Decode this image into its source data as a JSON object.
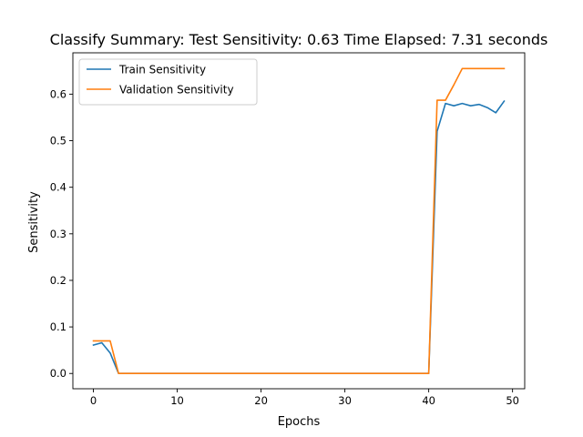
{
  "chart_data": {
    "type": "line",
    "title": "Classify Summary: Test Sensitivity: 0.63 Time Elapsed: 7.31 seconds",
    "xlabel": "Epochs",
    "ylabel": "Sensitivity",
    "xlim": [
      -2.45,
      51.45
    ],
    "ylim": [
      -0.0328,
      0.6888
    ],
    "xticks": [
      0,
      10,
      20,
      30,
      40,
      50
    ],
    "xtick_labels": [
      "0",
      "10",
      "20",
      "30",
      "40",
      "50"
    ],
    "yticks": [
      0.0,
      0.1,
      0.2,
      0.3,
      0.4,
      0.5,
      0.6
    ],
    "ytick_labels": [
      "0.0",
      "0.1",
      "0.2",
      "0.3",
      "0.4",
      "0.5",
      "0.6"
    ],
    "grid": false,
    "legend_position": "top-left",
    "x": [
      0,
      1,
      2,
      3,
      4,
      5,
      6,
      7,
      8,
      9,
      10,
      11,
      12,
      13,
      14,
      15,
      16,
      17,
      18,
      19,
      20,
      21,
      22,
      23,
      24,
      25,
      26,
      27,
      28,
      29,
      30,
      31,
      32,
      33,
      34,
      35,
      36,
      37,
      38,
      39,
      40,
      41,
      42,
      43,
      44,
      45,
      46,
      47,
      48,
      49
    ],
    "series": [
      {
        "name": "Train Sensitivity",
        "color": "#1f77b4",
        "values": [
          0.061,
          0.066,
          0.044,
          0.0,
          0.0,
          0.0,
          0.0,
          0.0,
          0.0,
          0.0,
          0.0,
          0.0,
          0.0,
          0.0,
          0.0,
          0.0,
          0.0,
          0.0,
          0.0,
          0.0,
          0.0,
          0.0,
          0.0,
          0.0,
          0.0,
          0.0,
          0.0,
          0.0,
          0.0,
          0.0,
          0.0,
          0.0,
          0.0,
          0.0,
          0.0,
          0.0,
          0.0,
          0.0,
          0.0,
          0.0,
          0.0,
          0.52,
          0.58,
          0.575,
          0.58,
          0.575,
          0.578,
          0.571,
          0.56,
          0.585
        ]
      },
      {
        "name": "Validation Sensitivity",
        "color": "#ff7f0e",
        "values": [
          0.07,
          0.07,
          0.07,
          0.0,
          0.0,
          0.0,
          0.0,
          0.0,
          0.0,
          0.0,
          0.0,
          0.0,
          0.0,
          0.0,
          0.0,
          0.0,
          0.0,
          0.0,
          0.0,
          0.0,
          0.0,
          0.0,
          0.0,
          0.0,
          0.0,
          0.0,
          0.0,
          0.0,
          0.0,
          0.0,
          0.0,
          0.0,
          0.0,
          0.0,
          0.0,
          0.0,
          0.0,
          0.0,
          0.0,
          0.0,
          0.0,
          0.587,
          0.587,
          0.62,
          0.655,
          0.655,
          0.655,
          0.655,
          0.655,
          0.655
        ]
      }
    ]
  }
}
